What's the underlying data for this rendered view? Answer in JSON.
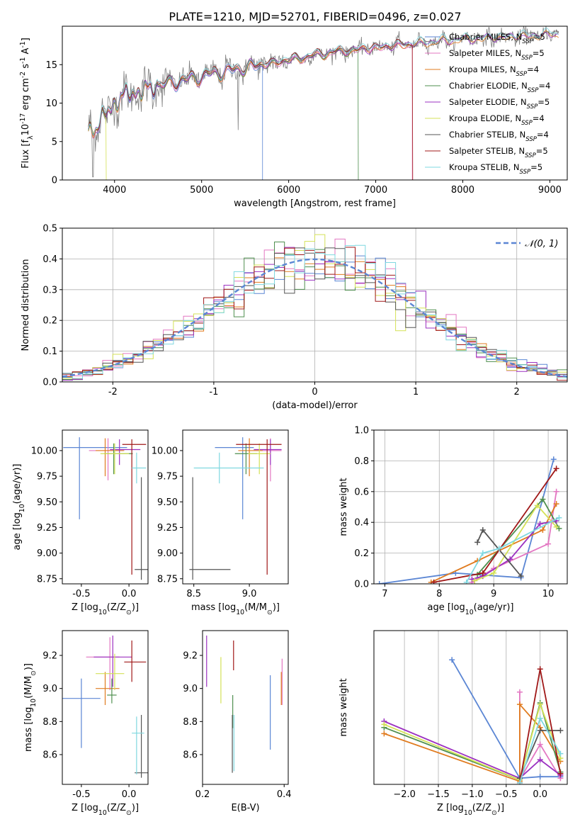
{
  "title": "PLATE=1210, MJD=52701, FIBERID=0496, z=0.027",
  "colors": {
    "Chabrier MILES": "#5b86d4",
    "Salpeter MILES": "#e377c2",
    "Kroupa MILES": "#e07b1f",
    "Chabrier ELODIE": "#4f8f4f",
    "Salpeter ELODIE": "#9b30c0",
    "Kroupa ELODIE": "#d4e157",
    "Chabrier STELIB": "#555555",
    "Salpeter STELIB": "#a01818",
    "Kroupa STELIB": "#7fd8e0",
    "data": "#808080",
    "gaussian": "#5b86d4"
  },
  "chart_data": [
    {
      "type": "line",
      "name": "spectrum",
      "xlabel": "wavelength [Angstrom, rest frame]",
      "ylabel": "Flux [f$_λ$10$^{-17}$ erg cm$^{-2}$ s$^{-1}$ A$^{-1}$]",
      "xlim": [
        3400,
        9200
      ],
      "ylim": [
        0,
        20
      ],
      "xticks": [
        4000,
        5000,
        6000,
        7000,
        8000,
        9000
      ],
      "yticks": [
        0,
        5,
        10,
        15
      ],
      "legend_position": "right",
      "legend": [
        {
          "label": "Chabrier MILES, N",
          "sub": "SSP",
          "tail": "=5",
          "model": "Chabrier MILES"
        },
        {
          "label": "Salpeter MILES, N",
          "sub": "SSP",
          "tail": "=5",
          "model": "Salpeter MILES"
        },
        {
          "label": "Kroupa MILES, N",
          "sub": "SSP",
          "tail": "=4",
          "model": "Kroupa MILES"
        },
        {
          "label": "Chabrier ELODIE, N",
          "sub": "SSP",
          "tail": "=4",
          "model": "Chabrier ELODIE"
        },
        {
          "label": "Salpeter ELODIE, N",
          "sub": "SSP",
          "tail": "=5",
          "model": "Salpeter ELODIE"
        },
        {
          "label": "Kroupa ELODIE, N",
          "sub": "SSP",
          "tail": "=4",
          "model": "Kroupa ELODIE"
        },
        {
          "label": "Chabrier STELIB, N",
          "sub": "SSP",
          "tail": "=4",
          "model": "Chabrier STELIB"
        },
        {
          "label": "Salpeter STELIB, N",
          "sub": "SSP",
          "tail": "=5",
          "model": "Salpeter STELIB"
        },
        {
          "label": "Kroupa STELIB, N",
          "sub": "SSP",
          "tail": "=5",
          "model": "Kroupa STELIB"
        }
      ],
      "continuum": [
        [
          3700,
          6.5
        ],
        [
          3800,
          7.0
        ],
        [
          3900,
          8.5
        ],
        [
          4000,
          10.0
        ],
        [
          4100,
          11.0
        ],
        [
          4300,
          11.5
        ],
        [
          4500,
          12.3
        ],
        [
          4800,
          13.0
        ],
        [
          5000,
          13.5
        ],
        [
          5200,
          14.0
        ],
        [
          5500,
          14.6
        ],
        [
          6000,
          15.6
        ],
        [
          6500,
          16.6
        ],
        [
          7000,
          17.2
        ],
        [
          7500,
          17.8
        ],
        [
          8000,
          18.3
        ],
        [
          8500,
          18.6
        ],
        [
          9000,
          18.9
        ],
        [
          9100,
          19.0
        ]
      ],
      "model_drops": [
        {
          "model": "Kroupa ELODIE",
          "x": 3905
        },
        {
          "model": "Chabrier MILES",
          "x": 5700
        },
        {
          "model": "Chabrier ELODIE",
          "x": 6800
        },
        {
          "model": "Salpeter MILES",
          "x": 7420
        },
        {
          "model": "Salpeter STELIB",
          "x": 7425
        }
      ],
      "data_dips": [
        [
          5420,
          6.5
        ],
        [
          3750,
          0.4
        ]
      ]
    },
    {
      "type": "histogram",
      "name": "residuals",
      "xlabel": "(data-model)/error",
      "ylabel": "Normed distribution",
      "xlim": [
        -2.5,
        2.5
      ],
      "ylim": [
        0,
        0.5
      ],
      "xticks": [
        -2,
        -1,
        0,
        1,
        2
      ],
      "yticks": [
        0.0,
        0.1,
        0.2,
        0.3,
        0.4,
        0.5
      ],
      "bin_width": 0.1,
      "legend_label": "𝒩(0, 1)"
    },
    {
      "type": "scatter",
      "name": "age-vs-Z",
      "xlabel": "Z [log$_{10}$(Z/Z$_⊙$)]",
      "ylabel": "age  [log$_{10}$(age/yr)]",
      "xlim": [
        -0.7,
        0.2
      ],
      "ylim": [
        8.7,
        10.2
      ],
      "xticks": [
        -0.5,
        0.0
      ],
      "yticks": [
        8.75,
        9.0,
        9.25,
        9.5,
        9.75,
        10.0
      ],
      "points": [
        {
          "model": "Chabrier MILES",
          "x": -0.52,
          "xerr": [
            0.17,
            0.5
          ],
          "y": 10.03,
          "yerr": [
            0.7,
            0.1
          ]
        },
        {
          "model": "Salpeter MILES",
          "x": -0.22,
          "xerr": [
            0.2,
            0.15
          ],
          "y": 10.0,
          "yerr": [
            0.29,
            0.12
          ]
        },
        {
          "model": "Kroupa MILES",
          "x": -0.25,
          "xerr": [
            0.1,
            0.2
          ],
          "y": 10.0,
          "yerr": [
            0.25,
            0.12
          ]
        },
        {
          "model": "Chabrier ELODIE",
          "x": -0.16,
          "xerr": [
            0.1,
            0.2
          ],
          "y": 9.97,
          "yerr": [
            0.2,
            0.1
          ]
        },
        {
          "model": "Salpeter ELODIE",
          "x": -0.1,
          "xerr": [
            0.1,
            0.22
          ],
          "y": 10.01,
          "yerr": [
            0.15,
            0.1
          ]
        },
        {
          "model": "Kroupa ELODIE",
          "x": -0.15,
          "xerr": [
            0.15,
            0.15
          ],
          "y": 9.97,
          "yerr": [
            0.2,
            0.1
          ]
        },
        {
          "model": "Chabrier STELIB",
          "x": 0.13,
          "xerr": [
            0.07,
            0.07
          ],
          "y": 8.84,
          "yerr": [
            0.1,
            0.9
          ]
        },
        {
          "model": "Salpeter STELIB",
          "x": 0.03,
          "xerr": [
            0.1,
            0.15
          ],
          "y": 10.06,
          "yerr": [
            1.27,
            0.05
          ]
        },
        {
          "model": "Kroupa STELIB",
          "x": 0.08,
          "xerr": [
            0.05,
            0.1
          ],
          "y": 9.83,
          "yerr": [
            0.15,
            0.15
          ]
        }
      ]
    },
    {
      "type": "scatter",
      "name": "age-vs-mass",
      "xlabel": "mass [log$_{10}$(M/M$_⊙$)]",
      "ylabel": "",
      "xlim": [
        8.4,
        9.35
      ],
      "ylim": [
        8.7,
        10.2
      ],
      "xticks": [
        8.5,
        9.0
      ],
      "yticks": [
        8.75,
        9.0,
        9.25,
        9.5,
        9.75,
        10.0
      ],
      "points": [
        {
          "model": "Chabrier MILES",
          "x": 8.94,
          "xerr": [
            0.25,
            0.1
          ],
          "y": 10.03,
          "yerr": [
            0.7,
            0.1
          ]
        },
        {
          "model": "Salpeter MILES",
          "x": 9.19,
          "xerr": [
            0.15,
            0.1
          ],
          "y": 10.0,
          "yerr": [
            0.3,
            0.12
          ]
        },
        {
          "model": "Kroupa MILES",
          "x": 9.0,
          "xerr": [
            0.1,
            0.12
          ],
          "y": 10.0,
          "yerr": [
            0.25,
            0.12
          ]
        },
        {
          "model": "Chabrier ELODIE",
          "x": 8.97,
          "xerr": [
            0.1,
            0.1
          ],
          "y": 9.97,
          "yerr": [
            0.2,
            0.1
          ]
        },
        {
          "model": "Salpeter ELODIE",
          "x": 9.19,
          "xerr": [
            0.15,
            0.1
          ],
          "y": 10.01,
          "yerr": [
            0.15,
            0.1
          ]
        },
        {
          "model": "Kroupa ELODIE",
          "x": 9.09,
          "xerr": [
            0.1,
            0.1
          ],
          "y": 9.97,
          "yerr": [
            0.2,
            0.1
          ]
        },
        {
          "model": "Chabrier STELIB",
          "x": 8.49,
          "xerr": [
            0.03,
            0.34
          ],
          "y": 8.84,
          "yerr": [
            0.1,
            0.9
          ]
        },
        {
          "model": "Salpeter STELIB",
          "x": 9.16,
          "xerr": [
            0.28,
            0.13
          ],
          "y": 10.06,
          "yerr": [
            1.27,
            0.05
          ]
        },
        {
          "model": "Kroupa STELIB",
          "x": 8.73,
          "xerr": [
            0.23,
            0.4
          ],
          "y": 9.83,
          "yerr": [
            0.15,
            0.15
          ]
        }
      ]
    },
    {
      "type": "line",
      "name": "weight-vs-age",
      "xlabel": "age  [log$_{10}$(age/yr)]",
      "ylabel": "mass weight",
      "xlim": [
        6.8,
        10.35
      ],
      "ylim": [
        0.0,
        1.0
      ],
      "xticks": [
        7,
        8,
        9,
        10
      ],
      "yticks": [
        0.0,
        0.2,
        0.4,
        0.6,
        0.8,
        1.0
      ],
      "series": [
        {
          "model": "Chabrier MILES",
          "x": [
            6.9,
            8.3,
            9.5,
            10.1
          ],
          "y": [
            0.0,
            0.07,
            0.04,
            0.81
          ]
        },
        {
          "model": "Salpeter MILES",
          "x": [
            8.6,
            9.0,
            10.0,
            10.15
          ],
          "y": [
            0.01,
            0.1,
            0.26,
            0.6
          ]
        },
        {
          "model": "Kroupa MILES",
          "x": [
            7.85,
            8.7,
            9.9,
            10.15
          ],
          "y": [
            0.01,
            0.15,
            0.35,
            0.52
          ]
        },
        {
          "model": "Chabrier ELODIE",
          "x": [
            8.7,
            9.9,
            10.2
          ],
          "y": [
            0.06,
            0.55,
            0.36
          ]
        },
        {
          "model": "Salpeter ELODIE",
          "x": [
            8.6,
            8.8,
            9.3,
            9.85,
            10.15
          ],
          "y": [
            0.03,
            0.05,
            0.16,
            0.39,
            0.41
          ]
        },
        {
          "model": "Kroupa ELODIE",
          "x": [
            8.65,
            9.0,
            9.8,
            10.15
          ],
          "y": [
            0.02,
            0.07,
            0.51,
            0.37
          ]
        },
        {
          "model": "Chabrier STELIB",
          "x": [
            8.7,
            8.8,
            9.5
          ],
          "y": [
            0.27,
            0.35,
            0.05
          ]
        },
        {
          "model": "Salpeter STELIB",
          "x": [
            7.9,
            8.8,
            10.15
          ],
          "y": [
            0.01,
            0.07,
            0.75
          ]
        },
        {
          "model": "Kroupa STELIB",
          "x": [
            8.5,
            8.8,
            9.1,
            10.2
          ],
          "y": [
            0.01,
            0.2,
            0.23,
            0.43
          ]
        }
      ]
    },
    {
      "type": "scatter",
      "name": "mass-vs-Z",
      "xlabel": "Z [log$_{10}$(Z/Z$_⊙$)]",
      "ylabel": "mass [log$_{10}$(M/M$_⊙$)]",
      "xlim": [
        -0.7,
        0.2
      ],
      "ylim": [
        8.42,
        9.35
      ],
      "xticks": [
        -0.5,
        0.0
      ],
      "yticks": [
        8.6,
        8.8,
        9.0,
        9.2
      ],
      "points": [
        {
          "model": "Chabrier MILES",
          "x": -0.5,
          "xerr": [
            0.2,
            0.2
          ],
          "y": 8.94,
          "yerr": [
            0.3,
            0.12
          ]
        },
        {
          "model": "Salpeter MILES",
          "x": -0.2,
          "xerr": [
            0.25,
            0.1
          ],
          "y": 9.19,
          "yerr": [
            0.2,
            0.12
          ]
        },
        {
          "model": "Kroupa MILES",
          "x": -0.25,
          "xerr": [
            0.1,
            0.15
          ],
          "y": 9.0,
          "yerr": [
            0.1,
            0.1
          ]
        },
        {
          "model": "Chabrier ELODIE",
          "x": -0.18,
          "xerr": [
            0.05,
            0.05
          ],
          "y": 8.96,
          "yerr": [
            0.05,
            0.1
          ]
        },
        {
          "model": "Salpeter ELODIE",
          "x": -0.17,
          "xerr": [
            0.2,
            0.2
          ],
          "y": 9.19,
          "yerr": [
            0.18,
            0.13
          ]
        },
        {
          "model": "Kroupa ELODIE",
          "x": -0.15,
          "xerr": [
            0.2,
            0.1
          ],
          "y": 9.09,
          "yerr": [
            0.1,
            0.12
          ]
        },
        {
          "model": "Chabrier STELIB",
          "x": 0.13,
          "xerr": [
            0.07,
            0.07
          ],
          "y": 8.49,
          "yerr": [
            0.03,
            0.35
          ]
        },
        {
          "model": "Salpeter STELIB",
          "x": 0.03,
          "xerr": [
            0.08,
            0.15
          ],
          "y": 9.16,
          "yerr": [
            0.12,
            0.13
          ]
        },
        {
          "model": "Kroupa STELIB",
          "x": 0.08,
          "xerr": [
            0.05,
            0.08
          ],
          "y": 8.73,
          "yerr": [
            0.25,
            0.1
          ]
        }
      ]
    },
    {
      "type": "scatter",
      "name": "mass-vs-ebv",
      "xlabel": "E(B-V)",
      "ylabel": "",
      "xlim": [
        0.2,
        0.41
      ],
      "ylim": [
        8.42,
        9.35
      ],
      "xticks": [
        0.2,
        0.4
      ],
      "yticks": [
        8.6,
        8.8,
        9.0,
        9.2
      ],
      "points": [
        {
          "model": "Chabrier MILES",
          "x": 0.366,
          "y": 8.86,
          "yerr": [
            0.23,
            0.22
          ]
        },
        {
          "model": "Salpeter MILES",
          "x": 0.395,
          "y": 9.04,
          "yerr": [
            0.14,
            0.14
          ]
        },
        {
          "model": "Kroupa MILES",
          "x": 0.393,
          "y": 9.0,
          "yerr": [
            0.1,
            0.1
          ]
        },
        {
          "model": "Chabrier ELODIE",
          "x": 0.274,
          "y": 8.86,
          "yerr": [
            0.1,
            0.1
          ]
        },
        {
          "model": "Salpeter ELODIE",
          "x": 0.21,
          "y": 9.17,
          "yerr": [
            0.16,
            0.15
          ]
        },
        {
          "model": "Kroupa ELODIE",
          "x": 0.245,
          "y": 9.05,
          "yerr": [
            0.14,
            0.14
          ]
        },
        {
          "model": "Chabrier STELIB",
          "x": 0.273,
          "y": 8.67,
          "yerr": [
            0.18,
            0.17
          ]
        },
        {
          "model": "Salpeter STELIB",
          "x": 0.276,
          "y": 9.16,
          "yerr": [
            0.05,
            0.13
          ]
        },
        {
          "model": "Kroupa STELIB",
          "x": 0.277,
          "y": 8.67,
          "yerr": [
            0.17,
            0.17
          ]
        }
      ]
    },
    {
      "type": "line",
      "name": "weight-vs-Z",
      "xlabel": "Z [log$_{10}$(Z/Z$_⊙$)]",
      "ylabel": "mass weight",
      "xlim": [
        -2.45,
        0.4
      ],
      "ylim": [
        0.0,
        1.0
      ],
      "xticks": [
        -2.0,
        -1.5,
        -1.0,
        -0.5,
        0.0
      ],
      "series": [
        {
          "model": "Chabrier MILES",
          "x": [
            -1.3,
            -0.3,
            0.0,
            0.3
          ],
          "y": [
            0.81,
            0.04,
            0.05,
            0.05
          ]
        },
        {
          "model": "Salpeter MILES",
          "x": [
            -0.3,
            -0.3,
            0.0,
            0.3
          ],
          "y": [
            0.6,
            0.03,
            0.26,
            0.04
          ]
        },
        {
          "model": "Kroupa MILES",
          "x": [
            -2.3,
            -0.3,
            -0.3,
            0.0,
            0.3
          ],
          "y": [
            0.33,
            0.02,
            0.52,
            0.37,
            0.15
          ]
        },
        {
          "model": "Chabrier ELODIE",
          "x": [
            -2.3,
            -0.3,
            0.0,
            0.3
          ],
          "y": [
            0.37,
            0.03,
            0.53,
            0.08
          ]
        },
        {
          "model": "Salpeter ELODIE",
          "x": [
            -2.3,
            -0.3,
            0.0,
            0.3
          ],
          "y": [
            0.41,
            0.04,
            0.16,
            0.06
          ]
        },
        {
          "model": "Kroupa ELODIE",
          "x": [
            -2.3,
            -0.3,
            0.0,
            0.3
          ],
          "y": [
            0.39,
            0.03,
            0.52,
            0.17
          ]
        },
        {
          "model": "Chabrier STELIB",
          "x": [
            -0.3,
            0.0,
            0.3
          ],
          "y": [
            0.04,
            0.35,
            0.35
          ]
        },
        {
          "model": "Salpeter STELIB",
          "x": [
            -0.3,
            0.0,
            0.3
          ],
          "y": [
            0.01,
            0.75,
            0.07
          ]
        },
        {
          "model": "Kroupa STELIB",
          "x": [
            -0.3,
            0.0,
            0.3
          ],
          "y": [
            0.01,
            0.43,
            0.2
          ]
        }
      ]
    }
  ]
}
